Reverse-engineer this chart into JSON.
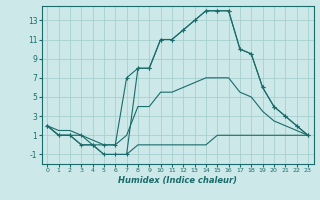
{
  "xlabel": "Humidex (Indice chaleur)",
  "background_color": "#cce8e8",
  "grid_color": "#a8d0d0",
  "line_color": "#1a6b6b",
  "x_hours": [
    0,
    1,
    2,
    3,
    4,
    5,
    6,
    7,
    8,
    9,
    10,
    11,
    12,
    13,
    14,
    15,
    16,
    17,
    18,
    19,
    20,
    21,
    22,
    23
  ],
  "line_main": [
    2,
    1,
    1,
    0,
    0,
    -1,
    -1,
    -1,
    8,
    8,
    11,
    11,
    12,
    13,
    14,
    14,
    14,
    10,
    9.5,
    6,
    4,
    3,
    2,
    1
  ],
  "line_max": [
    2,
    1,
    1,
    1,
    0,
    0,
    0,
    7,
    8,
    8,
    11,
    11,
    12,
    13,
    14,
    14,
    14,
    10,
    9.5,
    6,
    4,
    3,
    2,
    1
  ],
  "line_min": [
    2,
    1,
    1,
    0,
    0,
    -1,
    -1,
    -1,
    0,
    0,
    0,
    0,
    0,
    0,
    0,
    1,
    1,
    1,
    1,
    1,
    1,
    1,
    1,
    1
  ],
  "line_avg": [
    2,
    1.5,
    1.5,
    1,
    0.5,
    0,
    0,
    1,
    4,
    4,
    5.5,
    5.5,
    6,
    6.5,
    7,
    7,
    7,
    5.5,
    5,
    3.5,
    2.5,
    2,
    1.5,
    1
  ],
  "xlim": [
    -0.5,
    23.5
  ],
  "ylim": [
    -2,
    14.5
  ],
  "yticks": [
    -1,
    1,
    3,
    5,
    7,
    9,
    11,
    13
  ],
  "xticks": [
    0,
    1,
    2,
    3,
    4,
    5,
    6,
    7,
    8,
    9,
    10,
    11,
    12,
    13,
    14,
    15,
    16,
    17,
    18,
    19,
    20,
    21,
    22,
    23
  ]
}
